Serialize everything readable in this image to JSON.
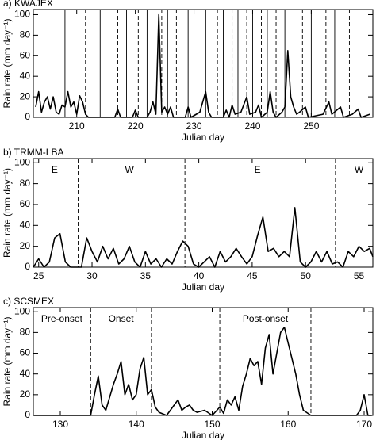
{
  "chart_data": [
    {
      "type": "line",
      "title": "a) KWAJEX",
      "xlabel": "Julian day",
      "ylabel": "Rain rate (mm day⁻¹)",
      "xlim": [
        202.6,
        260.5
      ],
      "ylim": [
        0,
        105
      ],
      "xticks": [
        210,
        220,
        230,
        240,
        250
      ],
      "yticks": [
        0,
        20,
        40,
        60,
        80,
        100
      ],
      "vlines": [
        {
          "x": 208,
          "style": "solid"
        },
        {
          "x": 211.5,
          "style": "dashed"
        },
        {
          "x": 214,
          "style": "solid"
        },
        {
          "x": 217,
          "style": "dashed"
        },
        {
          "x": 218.5,
          "style": "solid"
        },
        {
          "x": 220.5,
          "style": "dashed"
        },
        {
          "x": 222,
          "style": "solid"
        },
        {
          "x": 224.5,
          "style": "dashed"
        },
        {
          "x": 225.5,
          "style": "solid"
        },
        {
          "x": 227,
          "style": "dashed"
        },
        {
          "x": 229,
          "style": "solid"
        },
        {
          "x": 232,
          "style": "solid"
        },
        {
          "x": 234,
          "style": "dashed"
        },
        {
          "x": 235,
          "style": "solid"
        },
        {
          "x": 236.5,
          "style": "dashed"
        },
        {
          "x": 237.5,
          "style": "solid"
        },
        {
          "x": 239,
          "style": "dashed"
        },
        {
          "x": 240,
          "style": "solid"
        },
        {
          "x": 241.5,
          "style": "dashed"
        },
        {
          "x": 242.5,
          "style": "solid"
        },
        {
          "x": 244,
          "style": "dashed"
        },
        {
          "x": 245.5,
          "style": "solid"
        },
        {
          "x": 248.5,
          "style": "dashed"
        },
        {
          "x": 250,
          "style": "solid"
        },
        {
          "x": 252.5,
          "style": "dashed"
        },
        {
          "x": 254,
          "style": "solid"
        },
        {
          "x": 256.5,
          "style": "dashed"
        }
      ],
      "annotations": [],
      "series": [
        {
          "color": "#000000",
          "x": [
            203,
            203.5,
            204,
            204.5,
            205,
            205.5,
            206,
            206.5,
            207,
            207.5,
            208,
            208.5,
            209,
            209.5,
            210,
            210.5,
            211,
            211.5,
            212,
            216.5,
            217,
            217.5,
            219.5,
            220,
            220.5,
            222,
            222.5,
            223,
            223.5,
            224,
            224.5,
            225,
            225.5,
            226,
            226.5,
            228.5,
            229,
            229.5,
            231,
            232,
            232.5,
            233,
            235,
            235.5,
            236,
            236.5,
            237,
            238,
            239,
            239.5,
            240.5,
            241,
            241.5,
            242.5,
            243,
            243.5,
            244,
            245,
            245.5,
            246,
            246.5,
            247,
            247.5,
            248,
            249,
            249.5,
            252,
            253,
            253.5,
            255,
            255.5,
            257,
            258,
            258.5,
            260
          ],
          "values": [
            10,
            25,
            5,
            15,
            20,
            8,
            20,
            5,
            3,
            12,
            10,
            25,
            10,
            15,
            3,
            21,
            15,
            3,
            0,
            0,
            8,
            0,
            0,
            7,
            0,
            0,
            5,
            15,
            3,
            100,
            5,
            10,
            3,
            10,
            0,
            0,
            10,
            0,
            5,
            25,
            5,
            0,
            0,
            7,
            0,
            12,
            3,
            5,
            20,
            3,
            5,
            12,
            0,
            5,
            25,
            5,
            0,
            5,
            10,
            65,
            20,
            10,
            3,
            5,
            10,
            0,
            3,
            15,
            3,
            10,
            0,
            3,
            8,
            0,
            3
          ]
        }
      ]
    },
    {
      "type": "line",
      "title": "b) TRMM-LBA",
      "xlabel": "Julian day",
      "ylabel": "Rain rate (mm day⁻¹)",
      "xlim": [
        24.5,
        56.3
      ],
      "ylim": [
        0,
        104
      ],
      "xticks": [
        25,
        30,
        35,
        40,
        45,
        50,
        55
      ],
      "yticks": [
        0,
        20,
        40,
        60,
        80,
        100
      ],
      "vlines": [
        {
          "x": 28.7,
          "style": "dashed"
        },
        {
          "x": 38.7,
          "style": "dashed"
        },
        {
          "x": 52.8,
          "style": "dashed"
        }
      ],
      "annotations": [
        {
          "text": "E",
          "x": 26.5
        },
        {
          "text": "W",
          "x": 33.5
        },
        {
          "text": "E",
          "x": 45.5
        },
        {
          "text": "W",
          "x": 55
        }
      ],
      "series": [
        {
          "color": "#000000",
          "x": [
            24.5,
            25,
            25.5,
            26,
            26.5,
            27,
            27.5,
            28,
            29,
            29.5,
            30,
            30.5,
            31,
            31.5,
            32,
            32.5,
            33,
            33.5,
            34,
            34.5,
            35,
            35.5,
            36,
            36.5,
            37,
            37.5,
            38,
            38.5,
            39,
            39.5,
            40,
            40.5,
            41,
            41.5,
            42,
            42.5,
            43,
            43.5,
            44,
            44.5,
            45,
            45.5,
            46,
            46.5,
            47,
            47.5,
            48,
            48.5,
            49,
            49.5,
            50,
            50.5,
            51,
            51.5,
            52,
            52.5,
            53,
            53.5,
            54,
            54.5,
            55,
            55.5,
            56,
            56.3
          ],
          "values": [
            0,
            8,
            0,
            5,
            28,
            32,
            5,
            0,
            0,
            28,
            15,
            5,
            20,
            8,
            18,
            3,
            8,
            20,
            5,
            0,
            15,
            3,
            8,
            0,
            8,
            3,
            15,
            25,
            20,
            3,
            0,
            5,
            10,
            0,
            15,
            5,
            10,
            18,
            10,
            3,
            10,
            30,
            48,
            15,
            18,
            10,
            15,
            10,
            57,
            5,
            0,
            5,
            15,
            5,
            15,
            3,
            5,
            0,
            15,
            10,
            20,
            15,
            18,
            10
          ]
        }
      ]
    },
    {
      "type": "line",
      "title": "c) SCSMEX",
      "xlabel": "Julian day",
      "ylabel": "Rain rate (mm day⁻¹)",
      "xlim": [
        126.45,
        171.15
      ],
      "ylim": [
        0,
        104
      ],
      "xticks": [
        130,
        140,
        150,
        160,
        170
      ],
      "yticks": [
        0,
        20,
        40,
        60,
        80,
        100
      ],
      "vlines": [
        {
          "x": 134,
          "style": "dashed"
        },
        {
          "x": 142,
          "style": "dashed"
        },
        {
          "x": 151,
          "style": "dashed"
        },
        {
          "x": 163,
          "style": "dashed"
        }
      ],
      "annotations": [
        {
          "text": "Pre-onset",
          "x": 130.2
        },
        {
          "text": "Onset",
          "x": 138
        },
        {
          "text": "Post-onset",
          "x": 157
        }
      ],
      "series": [
        {
          "color": "#000000",
          "x": [
            126.5,
            134,
            134.5,
            135,
            135.5,
            136,
            137,
            137.5,
            138,
            138.5,
            139,
            139.5,
            140,
            140.5,
            141,
            141.5,
            142,
            142.5,
            143,
            144,
            145,
            145.5,
            146,
            146.5,
            147,
            147.5,
            148,
            149,
            150,
            151,
            151.5,
            152,
            152.5,
            153,
            153.5,
            154,
            154.5,
            155,
            155.5,
            156,
            156.5,
            157,
            157.5,
            158,
            158.5,
            159,
            159.5,
            160,
            160.5,
            161,
            161.5,
            162,
            163,
            169,
            169.5,
            170,
            170.5,
            171
          ],
          "values": [
            0,
            0,
            20,
            38,
            10,
            5,
            30,
            40,
            52,
            20,
            30,
            15,
            20,
            45,
            56,
            20,
            25,
            8,
            3,
            0,
            10,
            15,
            5,
            8,
            10,
            5,
            3,
            5,
            0,
            8,
            2,
            15,
            10,
            18,
            5,
            28,
            40,
            55,
            48,
            52,
            30,
            65,
            78,
            40,
            60,
            80,
            85,
            70,
            55,
            40,
            20,
            5,
            0,
            0,
            5,
            20,
            0,
            0
          ]
        }
      ]
    }
  ]
}
